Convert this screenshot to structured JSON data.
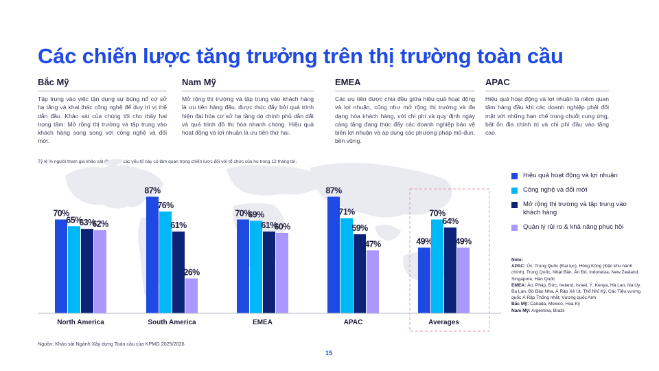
{
  "title": "Các chiến lược tăng trưởng trên thị trường toàn cầu",
  "regions": [
    {
      "name": "Bắc Mỹ",
      "text": "Tập trung vào việc tận dụng sự bùng nổ cơ sở hạ tầng và khai thác công nghệ để duy trì vị thế dẫn đầu. Khảo sát của chúng tôi cho thấy hai trọng tâm: Mở rộng thị trường và tập trung vào khách hàng song song với công nghệ và đổi mới."
    },
    {
      "name": "Nam Mỹ",
      "text": "Mở rộng thị trường và tập trung vào khách hàng là ưu tiên hàng đầu, được thúc đẩy bởi quá trình hiện đại hóa cơ sở hạ tầng do chính phủ dẫn dắt và quá trình đô thị hóa nhanh chóng. Hiệu quả hoạt động và lợi nhuận là ưu tiên thứ hai."
    },
    {
      "name": "EMEA",
      "text": "Các ưu tiên được chia đều giữa hiệu quả hoạt động và lợi nhuận, cũng như mở rộng thị trường và đa dạng hóa khách hàng, với chi phí và quy định ngày càng tăng đang thúc đẩy các doanh nghiệp bảo vệ biên lợi nhuận và áp dụng các phương pháp mô-đun, bền vững."
    },
    {
      "name": "APAC",
      "text": "Hiệu quả hoạt động và lợi nhuận là niềm quan tâm hàng đầu khi các doanh nghiệp phải đối mặt với những hạn chế trong chuỗi cung ứng, bất ổn địa chính trị và chi phí đầu vào tăng cao."
    }
  ],
  "survey_note": "Tỷ lệ % người tham gia khảo sát đánh giá các yếu tố này có tầm quan trọng chiến lược đối với tổ chức của họ trong 12 tháng tới.",
  "chart_data": {
    "type": "bar",
    "categories": [
      "North America",
      "South America",
      "EMEA",
      "APAC",
      "Averages"
    ],
    "series": [
      {
        "name": "Hiệu quả hoạt động và lợi nhuận",
        "color": "#1e49e2",
        "values": [
          70,
          87,
          70,
          87,
          49
        ]
      },
      {
        "name": "Công nghệ và đổi mới",
        "color": "#00b8f5",
        "values": [
          65,
          76,
          69,
          71,
          70
        ]
      },
      {
        "name": "Mở rộng thị trường và tập trung vào khách hàng",
        "color": "#0c2377",
        "values": [
          63,
          61,
          61,
          59,
          64
        ]
      },
      {
        "name": "Quản lý rủi ro & khả năng phục hồi",
        "color": "#ab98ff",
        "values": [
          62,
          26,
          60,
          47,
          49
        ]
      }
    ],
    "value_suffix": "%",
    "ylim": [
      0,
      100
    ],
    "highlighted_category": "Averages",
    "legend_position": "right",
    "grid": false
  },
  "notes": {
    "heading": "Note:",
    "lines": [
      {
        "label": "APAC:",
        "text": " Úc, Trung Quốc (Đại lục), Hồng Kông (Đặc khu hành chính), Trung Quốc, Nhật Bản, Ấn Độ, Indonesia, New Zealand, Singapore, Hàn Quốc"
      },
      {
        "label": "EMEA:",
        "text": " Áo, Pháp, Đức, Ireland, Israel, Ý, Kenya, Hà Lan, Na Uy, Ba Lan, Bồ Đào Nha, Ả Rập Xê Út, Thổ Nhĩ Kỳ, Các Tiểu vương quốc Ả Rập Thống nhất, Vương quốc Anh"
      },
      {
        "label": "Bắc Mỹ:",
        "text": " Canada, Mexico, Hoa Kỳ"
      },
      {
        "label": "Nam Mỹ:",
        "text": " Argentina, Brazil"
      }
    ]
  },
  "source": "Nguồn: Khảo sát Ngành Xây dựng Toàn cầu của KPMG 2025/2026",
  "page_number": "15"
}
